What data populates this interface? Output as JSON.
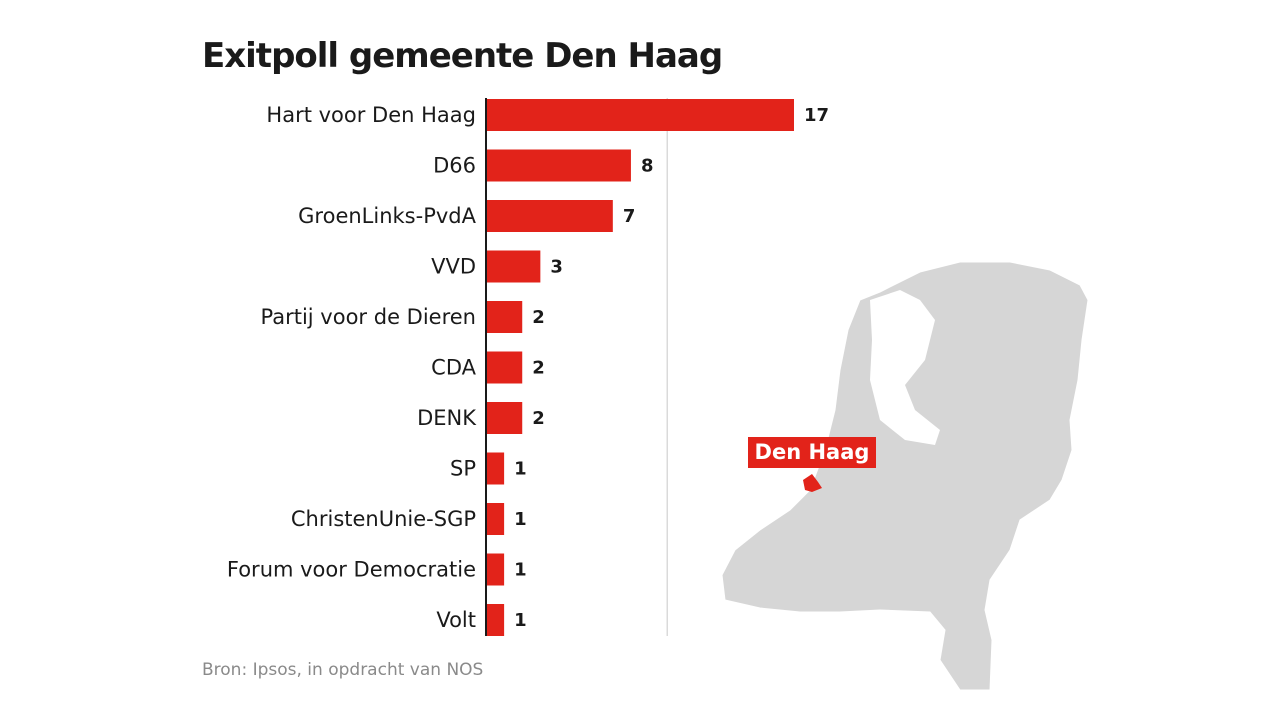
{
  "chart_data": {
    "type": "bar",
    "orientation": "horizontal",
    "title": "Exitpoll gemeente Den Haag",
    "categories": [
      "Hart voor Den Haag",
      "D66",
      "GroenLinks-PvdA",
      "VVD",
      "Partij voor de Dieren",
      "CDA",
      "DENK",
      "SP",
      "ChristenUnie-SGP",
      "Forum voor Democratie",
      "Volt"
    ],
    "values": [
      17,
      8,
      7,
      3,
      2,
      2,
      2,
      1,
      1,
      1,
      1
    ],
    "xlim": [
      0,
      17
    ],
    "gridlines": [
      10
    ],
    "bar_color": "#e2231a",
    "source": "Bron: Ipsos, in opdracht van NOS"
  },
  "map": {
    "highlight_label": "Den Haag",
    "land_color": "#d6d6d6",
    "highlight_color": "#e2231a"
  }
}
